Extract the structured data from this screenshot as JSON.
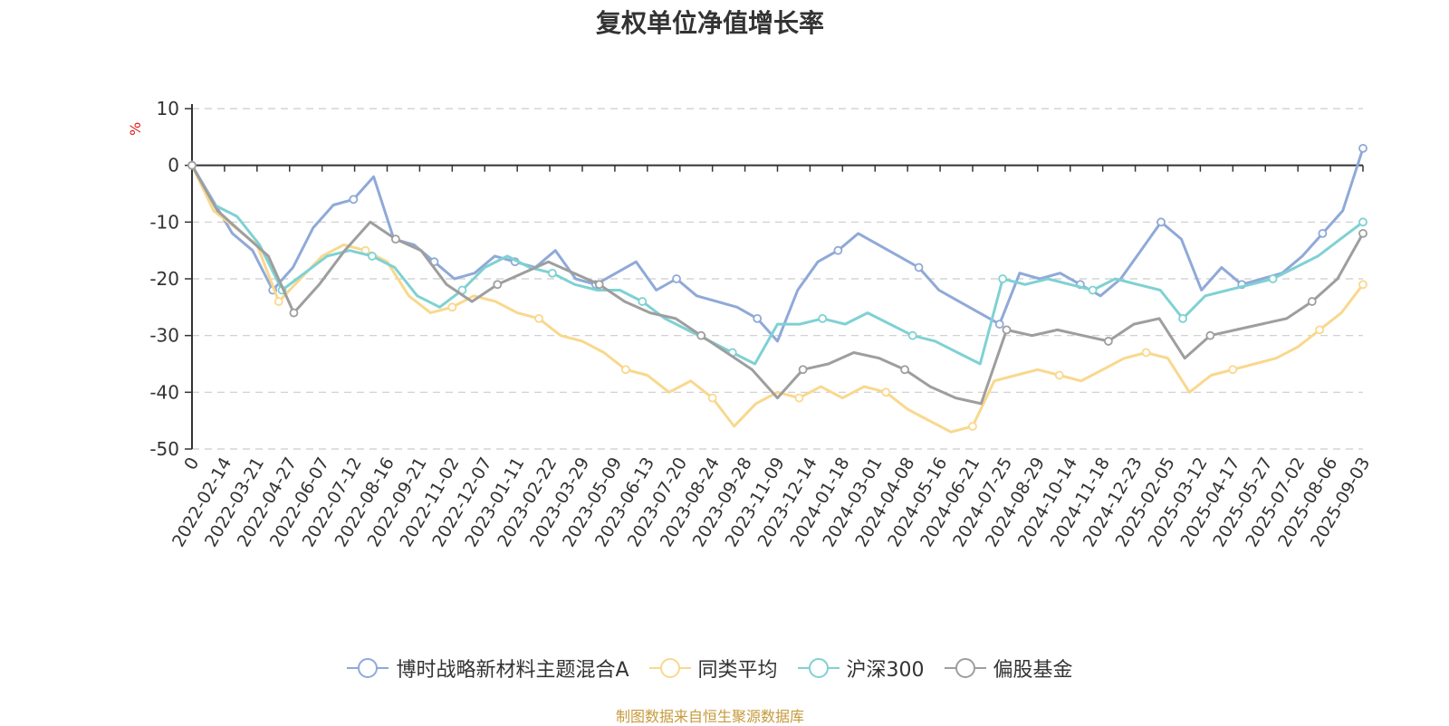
{
  "chart_data": {
    "type": "line",
    "title": "复权单位净值增长率",
    "ylabel": "%",
    "ylim": [
      -50,
      10
    ],
    "y_ticks": [
      10,
      0,
      -10,
      -20,
      -30,
      -40,
      -50
    ],
    "grid": true,
    "legend_position": "bottom",
    "x_ticks": [
      "0",
      "2022-02-14",
      "2022-03-21",
      "2022-04-27",
      "2022-06-07",
      "2022-07-12",
      "2022-08-16",
      "2022-09-21",
      "2022-11-02",
      "2022-12-07",
      "2023-01-11",
      "2023-02-22",
      "2023-03-29",
      "2023-05-09",
      "2023-06-13",
      "2023-07-20",
      "2023-08-24",
      "2023-09-28",
      "2023-11-09",
      "2023-12-14",
      "2024-01-18",
      "2024-03-01",
      "2024-04-08",
      "2024-05-16",
      "2024-06-21",
      "2024-07-25",
      "2024-08-29",
      "2024-10-14",
      "2024-11-18",
      "2024-12-23",
      "2025-02-05",
      "2025-03-12",
      "2025-04-17",
      "2025-05-27",
      "2025-07-02",
      "2025-08-06",
      "2025-09-03"
    ],
    "series": [
      {
        "name": "博时战略新材料主题混合A",
        "color": "#8fa9d8",
        "values": [
          0,
          -6,
          -12,
          -15,
          -22,
          -18,
          -11,
          -7,
          -6,
          -2,
          -13,
          -14,
          -17,
          -20,
          -19,
          -16,
          -17,
          -18,
          -15,
          -20,
          -21,
          -19,
          -17,
          -22,
          -20,
          -23,
          -24,
          -25,
          -27,
          -31,
          -22,
          -17,
          -15,
          -12,
          -14,
          -16,
          -18,
          -22,
          -24,
          -26,
          -28,
          -19,
          -20,
          -19,
          -21,
          -23,
          -20,
          -15,
          -10,
          -13,
          -22,
          -18,
          -21,
          -20,
          -19,
          -16,
          -12,
          -8,
          3
        ]
      },
      {
        "name": "同类平均",
        "color": "#f9d88d",
        "values": [
          0,
          -8,
          -11,
          -14,
          -24,
          -20,
          -16,
          -14,
          -15,
          -17,
          -23,
          -26,
          -25,
          -23,
          -24,
          -26,
          -27,
          -30,
          -31,
          -33,
          -36,
          -37,
          -40,
          -38,
          -41,
          -46,
          -42,
          -40,
          -41,
          -39,
          -41,
          -39,
          -40,
          -43,
          -45,
          -47,
          -46,
          -38,
          -37,
          -36,
          -37,
          -38,
          -36,
          -34,
          -33,
          -34,
          -40,
          -37,
          -36,
          -35,
          -34,
          -32,
          -29,
          -26,
          -21
        ]
      },
      {
        "name": "沪深300",
        "color": "#7fd1d3",
        "values": [
          0,
          -7,
          -9,
          -14,
          -22,
          -19,
          -16,
          -15,
          -16,
          -18,
          -23,
          -25,
          -22,
          -18,
          -16,
          -18,
          -19,
          -21,
          -22,
          -22,
          -24,
          -27,
          -29,
          -31,
          -33,
          -35,
          -28,
          -28,
          -27,
          -28,
          -26,
          -28,
          -30,
          -31,
          -33,
          -35,
          -20,
          -21,
          -20,
          -21,
          -22,
          -20,
          -21,
          -22,
          -27,
          -23,
          -22,
          -21,
          -20,
          -18,
          -16,
          -13,
          -10
        ]
      },
      {
        "name": "偏股基金",
        "color": "#9e9e9e",
        "values": [
          0,
          -8,
          -12,
          -16,
          -26,
          -21,
          -15,
          -10,
          -13,
          -15,
          -21,
          -24,
          -21,
          -19,
          -17,
          -19,
          -21,
          -24,
          -26,
          -27,
          -30,
          -33,
          -36,
          -41,
          -36,
          -35,
          -33,
          -34,
          -36,
          -39,
          -41,
          -42,
          -29,
          -30,
          -29,
          -30,
          -31,
          -28,
          -27,
          -34,
          -30,
          -29,
          -28,
          -27,
          -24,
          -20,
          -12
        ]
      }
    ]
  },
  "legend": {
    "items": [
      {
        "label": "博时战略新材料主题混合A",
        "color": "#8fa9d8"
      },
      {
        "label": "同类平均",
        "color": "#f9d88d"
      },
      {
        "label": "沪深300",
        "color": "#7fd1d3"
      },
      {
        "label": "偏股基金",
        "color": "#9e9e9e"
      }
    ]
  },
  "source_note": "制图数据来自恒生聚源数据库"
}
